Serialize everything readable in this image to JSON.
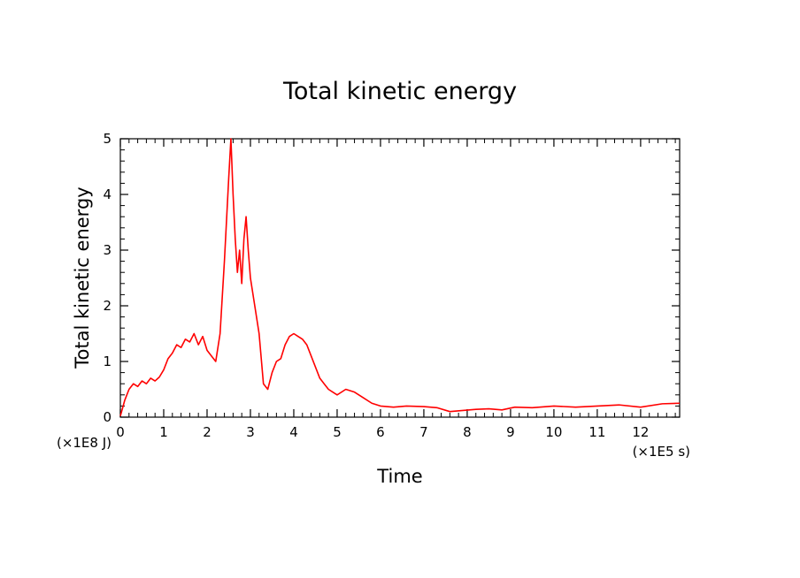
{
  "chart_data": {
    "type": "line",
    "title": "Total kinetic energy",
    "xlabel": "Time",
    "ylabel": "Total kinetic energy",
    "x_unit": "(×1E5 s)",
    "y_unit": "(×1E8 J)",
    "xlim": [
      0,
      12.9
    ],
    "ylim": [
      0,
      5
    ],
    "x_ticks": [
      0,
      1,
      2,
      3,
      4,
      5,
      6,
      7,
      8,
      9,
      10,
      11,
      12
    ],
    "y_ticks": [
      0,
      1,
      2,
      3,
      4,
      5
    ],
    "grid": false,
    "series": [
      {
        "color": "#ff0000",
        "x": [
          0,
          0.1,
          0.2,
          0.3,
          0.4,
          0.5,
          0.6,
          0.7,
          0.8,
          0.9,
          1.0,
          1.1,
          1.2,
          1.3,
          1.4,
          1.5,
          1.6,
          1.7,
          1.8,
          1.9,
          2.0,
          2.1,
          2.2,
          2.3,
          2.4,
          2.5,
          2.55,
          2.6,
          2.65,
          2.7,
          2.75,
          2.8,
          2.85,
          2.9,
          2.95,
          3.0,
          3.1,
          3.2,
          3.3,
          3.4,
          3.5,
          3.6,
          3.7,
          3.8,
          3.9,
          4.0,
          4.1,
          4.2,
          4.3,
          4.4,
          4.5,
          4.6,
          4.7,
          4.8,
          4.9,
          5.0,
          5.2,
          5.4,
          5.6,
          5.8,
          6.0,
          6.3,
          6.6,
          7.0,
          7.3,
          7.6,
          7.9,
          8.2,
          8.5,
          8.8,
          9.1,
          9.5,
          10.0,
          10.5,
          11.0,
          11.5,
          12.0,
          12.5,
          12.9
        ],
        "y": [
          0.02,
          0.3,
          0.5,
          0.6,
          0.55,
          0.65,
          0.6,
          0.7,
          0.65,
          0.72,
          0.85,
          1.05,
          1.15,
          1.3,
          1.25,
          1.4,
          1.35,
          1.5,
          1.3,
          1.45,
          1.2,
          1.1,
          1.0,
          1.5,
          2.8,
          4.3,
          5.0,
          4.0,
          3.2,
          2.6,
          3.0,
          2.4,
          3.2,
          3.6,
          3.0,
          2.5,
          2.0,
          1.5,
          0.6,
          0.5,
          0.8,
          1.0,
          1.05,
          1.3,
          1.45,
          1.5,
          1.45,
          1.4,
          1.3,
          1.1,
          0.9,
          0.7,
          0.6,
          0.5,
          0.45,
          0.4,
          0.5,
          0.45,
          0.35,
          0.25,
          0.2,
          0.18,
          0.2,
          0.19,
          0.17,
          0.1,
          0.12,
          0.14,
          0.15,
          0.13,
          0.18,
          0.17,
          0.2,
          0.18,
          0.2,
          0.22,
          0.18,
          0.24,
          0.25
        ]
      }
    ]
  }
}
